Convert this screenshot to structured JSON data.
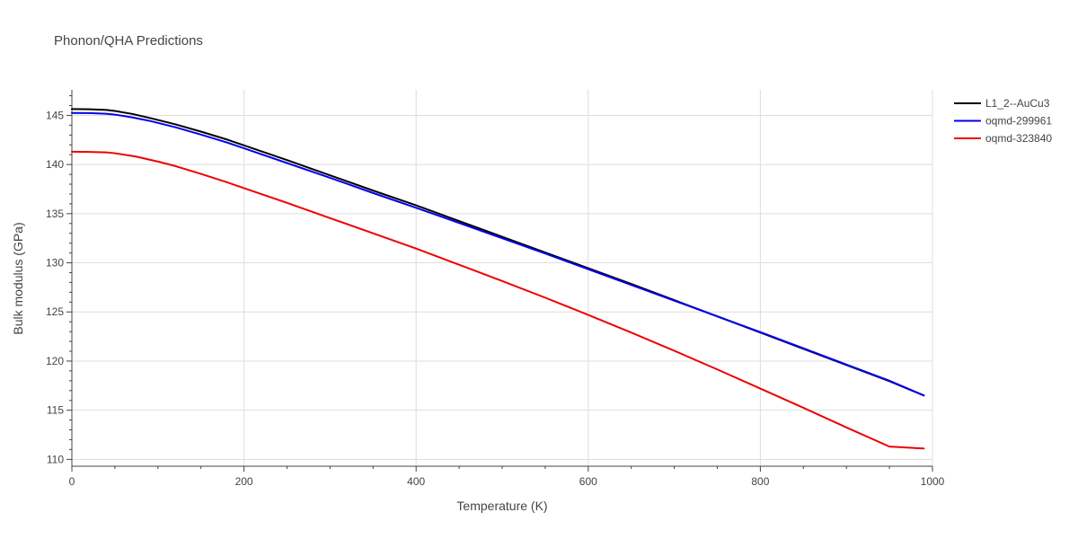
{
  "chart_data": {
    "type": "line",
    "title": "Phonon/QHA Predictions",
    "xlabel": "Temperature (K)",
    "ylabel": "Bulk modulus (GPa)",
    "xlim": [
      0,
      1000
    ],
    "ylim": [
      109.3,
      147.6
    ],
    "xticks": [
      0,
      200,
      400,
      600,
      800,
      1000
    ],
    "yticks": [
      110,
      115,
      120,
      125,
      130,
      135,
      140,
      145
    ],
    "grid": true,
    "legend_position": "top-right",
    "series": [
      {
        "name": "L1_2--AuCu3",
        "color": "#000000",
        "x": [
          0,
          20,
          40,
          50,
          70,
          90,
          120,
          150,
          180,
          200,
          250,
          300,
          350,
          400,
          450,
          500,
          550,
          600,
          650,
          700,
          750,
          800,
          850,
          900,
          950,
          990
        ],
        "y": [
          145.65,
          145.62,
          145.55,
          145.45,
          145.15,
          144.75,
          144.1,
          143.35,
          142.55,
          141.95,
          140.45,
          138.9,
          137.35,
          135.85,
          134.25,
          132.65,
          131.05,
          129.45,
          127.85,
          126.2,
          124.55,
          122.9,
          121.25,
          119.6,
          117.95,
          116.5
        ]
      },
      {
        "name": "oqmd-299961",
        "color": "#0000ee",
        "x": [
          0,
          20,
          40,
          50,
          70,
          90,
          120,
          150,
          180,
          200,
          250,
          300,
          350,
          400,
          450,
          500,
          550,
          600,
          650,
          700,
          750,
          800,
          850,
          900,
          950,
          990
        ],
        "y": [
          145.25,
          145.23,
          145.17,
          145.08,
          144.8,
          144.45,
          143.8,
          143.05,
          142.25,
          141.65,
          140.15,
          138.65,
          137.1,
          135.6,
          134.05,
          132.5,
          130.95,
          129.35,
          127.75,
          126.15,
          124.55,
          122.95,
          121.3,
          119.65,
          118.0,
          116.5
        ]
      },
      {
        "name": "oqmd-323840",
        "color": "#ee0000",
        "x": [
          0,
          20,
          40,
          50,
          75,
          100,
          120,
          150,
          180,
          200,
          250,
          300,
          350,
          400,
          450,
          500,
          550,
          600,
          650,
          700,
          750,
          800,
          850,
          900,
          950,
          990
        ],
        "y": [
          141.3,
          141.28,
          141.24,
          141.15,
          140.8,
          140.3,
          139.85,
          139.05,
          138.2,
          137.6,
          136.1,
          134.55,
          133.0,
          131.45,
          129.8,
          128.15,
          126.45,
          124.7,
          122.9,
          121.05,
          119.15,
          117.2,
          115.25,
          113.25,
          111.3,
          111.1
        ]
      }
    ]
  }
}
